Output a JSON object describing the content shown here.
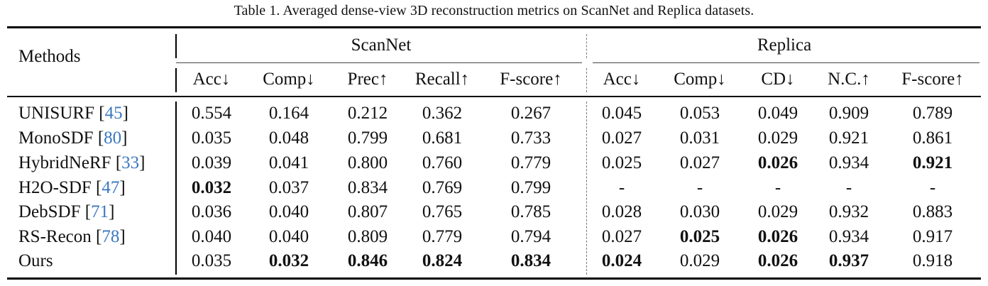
{
  "caption": "Table 1. Averaged dense-view 3D reconstruction metrics on ScanNet and Replica datasets.",
  "header": {
    "methods": "Methods",
    "groups": [
      "ScanNet",
      "Replica"
    ],
    "columns": [
      "Acc↓",
      "Comp↓",
      "Prec↑",
      "Recall↑",
      "F-score↑",
      "Acc↓",
      "Comp↓",
      "CD↓",
      "N.C.↑",
      "F-score↑"
    ]
  },
  "rows": [
    {
      "method": "UNISURF",
      "ref": "45",
      "values": [
        "0.554",
        "0.164",
        "0.212",
        "0.362",
        "0.267",
        "0.045",
        "0.053",
        "0.049",
        "0.909",
        "0.789"
      ],
      "bold": []
    },
    {
      "method": "MonoSDF",
      "ref": "80",
      "values": [
        "0.035",
        "0.048",
        "0.799",
        "0.681",
        "0.733",
        "0.027",
        "0.031",
        "0.029",
        "0.921",
        "0.861"
      ],
      "bold": []
    },
    {
      "method": "HybridNeRF",
      "ref": "33",
      "values": [
        "0.039",
        "0.041",
        "0.800",
        "0.760",
        "0.779",
        "0.025",
        "0.027",
        "0.026",
        "0.934",
        "0.921"
      ],
      "bold": [
        7,
        9
      ]
    },
    {
      "method": "H2O-SDF",
      "ref": "47",
      "values": [
        "0.032",
        "0.037",
        "0.834",
        "0.769",
        "0.799",
        "-",
        "-",
        "-",
        "-",
        "-"
      ],
      "bold": [
        0
      ]
    },
    {
      "method": "DebSDF",
      "ref": "71",
      "values": [
        "0.036",
        "0.040",
        "0.807",
        "0.765",
        "0.785",
        "0.028",
        "0.030",
        "0.029",
        "0.932",
        "0.883"
      ],
      "bold": []
    },
    {
      "method": "RS-Recon",
      "ref": "78",
      "values": [
        "0.040",
        "0.040",
        "0.809",
        "0.779",
        "0.794",
        "0.027",
        "0.025",
        "0.026",
        "0.934",
        "0.917"
      ],
      "bold": [
        6,
        7
      ]
    },
    {
      "method": "Ours",
      "ref": "",
      "values": [
        "0.035",
        "0.032",
        "0.846",
        "0.824",
        "0.834",
        "0.024",
        "0.029",
        "0.026",
        "0.937",
        "0.918"
      ],
      "bold": [
        1,
        2,
        3,
        4,
        5,
        7,
        8
      ]
    }
  ]
}
